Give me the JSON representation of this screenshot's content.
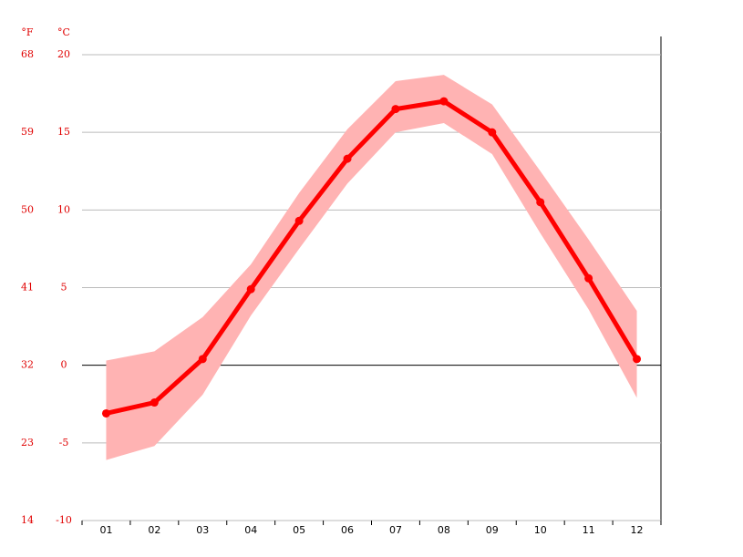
{
  "chart_data": {
    "type": "line",
    "ylabel": "°C",
    "y2label": "°F",
    "categories": [
      "01",
      "02",
      "03",
      "04",
      "05",
      "06",
      "07",
      "08",
      "09",
      "10",
      "11",
      "12"
    ],
    "values": [
      -3.1,
      -2.4,
      0.4,
      4.9,
      9.3,
      13.3,
      16.5,
      17.0,
      15.0,
      10.5,
      5.6,
      0.4
    ],
    "band_upper": [
      0.3,
      0.9,
      3.1,
      6.5,
      11.1,
      15.2,
      18.3,
      18.7,
      16.8,
      12.5,
      8.1,
      3.5
    ],
    "band_lower": [
      -6.1,
      -5.2,
      -1.9,
      3.2,
      7.5,
      11.7,
      15.0,
      15.6,
      13.6,
      8.5,
      3.6,
      -2.1
    ],
    "color": "#ff0000",
    "band_color": "#ffb3b3",
    "ylim": [
      -10,
      20
    ],
    "yticks": [
      -10,
      -5,
      0,
      5,
      10,
      15,
      20
    ],
    "y2lim": [
      14,
      68
    ],
    "y2ticks": [
      14,
      23,
      32,
      41,
      50,
      59,
      68
    ],
    "grid": true
  }
}
